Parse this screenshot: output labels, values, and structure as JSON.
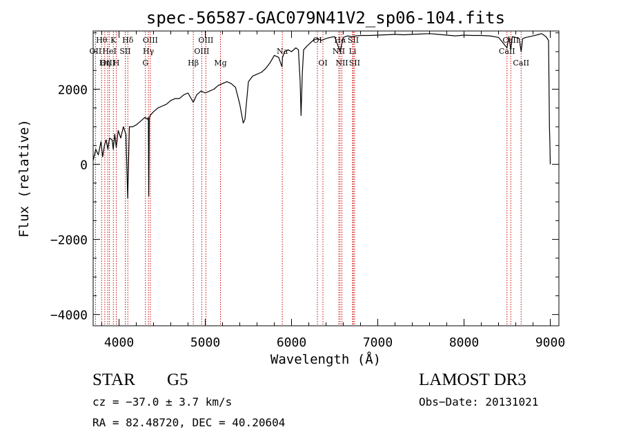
{
  "chart_data": {
    "type": "line",
    "title": "spec-56587-GAC079N41V2_sp06-104.fits",
    "xlabel": "Wavelength (Å)",
    "ylabel": "Flux (relative)",
    "xlim": [
      3700,
      9100
    ],
    "ylim": [
      -4300,
      3550
    ],
    "xticks": [
      4000,
      5000,
      6000,
      7000,
      8000,
      9000
    ],
    "xtick_labels": [
      "4000",
      "5000",
      "6000",
      "7000",
      "8000",
      "9000"
    ],
    "yticks": [
      -4000,
      -2000,
      0,
      2000
    ],
    "ytick_labels": [
      "−4000",
      "−2000",
      "0",
      "2000"
    ],
    "grid": false,
    "line_color": "#000000",
    "marker_color": "#cc0000",
    "series": [
      {
        "name": "spectrum",
        "x": [
          3700,
          3730,
          3760,
          3790,
          3810,
          3830,
          3850,
          3870,
          3890,
          3920,
          3933,
          3950,
          3968,
          3990,
          4020,
          4050,
          4080,
          4101,
          4120,
          4160,
          4200,
          4250,
          4300,
          4330,
          4340,
          4345,
          4350,
          4360,
          4400,
          4450,
          4500,
          4550,
          4600,
          4650,
          4700,
          4750,
          4800,
          4861,
          4900,
          4950,
          5000,
          5050,
          5100,
          5150,
          5200,
          5250,
          5300,
          5350,
          5400,
          5440,
          5460,
          5480,
          5500,
          5550,
          5600,
          5650,
          5700,
          5750,
          5800,
          5850,
          5889,
          5896,
          5920,
          5960,
          6000,
          6050,
          6080,
          6100,
          6110,
          6125,
          6140,
          6180,
          6250,
          6300,
          6350,
          6400,
          6450,
          6500,
          6563,
          6600,
          6650,
          6700,
          6750,
          6800,
          6900,
          7000,
          7100,
          7200,
          7300,
          7400,
          7500,
          7600,
          7700,
          7800,
          7900,
          8000,
          8100,
          8200,
          8300,
          8400,
          8498,
          8520,
          8542,
          8560,
          8600,
          8640,
          8662,
          8680,
          8720,
          8760,
          8800,
          8850,
          8900,
          8950,
          8980,
          8990,
          8995,
          9000
        ],
        "y": [
          100,
          400,
          250,
          600,
          200,
          500,
          650,
          400,
          700,
          650,
          400,
          800,
          450,
          900,
          700,
          1000,
          800,
          -900,
          1000,
          1000,
          1050,
          1150,
          1250,
          1200,
          1250,
          -850,
          1200,
          1300,
          1400,
          1500,
          1550,
          1600,
          1700,
          1750,
          1750,
          1850,
          1900,
          1650,
          1850,
          1950,
          1900,
          1950,
          2000,
          2100,
          2150,
          2200,
          2150,
          2050,
          1600,
          1100,
          1200,
          1700,
          2200,
          2350,
          2400,
          2450,
          2550,
          2700,
          2900,
          2850,
          2600,
          2850,
          3000,
          3050,
          3000,
          3100,
          3050,
          2200,
          1300,
          2400,
          3050,
          3150,
          3300,
          3350,
          3300,
          3350,
          3380,
          3400,
          3000,
          3380,
          3420,
          3400,
          3420,
          3430,
          3430,
          3440,
          3450,
          3460,
          3450,
          3460,
          3470,
          3480,
          3460,
          3440,
          3420,
          3440,
          3430,
          3430,
          3420,
          3380,
          3100,
          3400,
          3050,
          3400,
          3380,
          3350,
          3000,
          3350,
          3380,
          3400,
          3420,
          3450,
          3480,
          3400,
          3300,
          1000,
          600,
          0
        ]
      }
    ],
    "line_markers": [
      {
        "name": "Hθ",
        "wavelength": 3798,
        "row": 1
      },
      {
        "name": "OII",
        "wavelength": 3727,
        "row": 2
      },
      {
        "name": "OIII",
        "wavelength": 3869,
        "row": 3
      },
      {
        "name": "K",
        "wavelength": 3934,
        "row": 1
      },
      {
        "name": "HeI",
        "wavelength": 3889,
        "row": 2
      },
      {
        "name": "Hη",
        "wavelength": 3835,
        "row": 3
      },
      {
        "name": "Hδ",
        "wavelength": 4102,
        "row": 1
      },
      {
        "name": "SII",
        "wavelength": 4072,
        "row": 2
      },
      {
        "name": "H",
        "wavelength": 3968,
        "row": 3
      },
      {
        "name": "OIII",
        "wavelength": 4363,
        "row": 1
      },
      {
        "name": "Hγ",
        "wavelength": 4341,
        "row": 2
      },
      {
        "name": "G",
        "wavelength": 4306,
        "row": 3
      },
      {
        "name": "Hβ",
        "wavelength": 4861,
        "row": 3
      },
      {
        "name": "OIII",
        "wavelength": 5007,
        "row": 1
      },
      {
        "name": "OIII",
        "wavelength": 4959,
        "row": 2
      },
      {
        "name": "Mg",
        "wavelength": 5176,
        "row": 3
      },
      {
        "name": "Na",
        "wavelength": 5893,
        "row": 2
      },
      {
        "name": "OI",
        "wavelength": 6300,
        "row": 1
      },
      {
        "name": "OI",
        "wavelength": 6364,
        "row": 3
      },
      {
        "name": "Hα",
        "wavelength": 6563,
        "row": 1
      },
      {
        "name": "NII",
        "wavelength": 6548,
        "row": 2
      },
      {
        "name": "NII",
        "wavelength": 6584,
        "row": 3
      },
      {
        "name": "SII",
        "wavelength": 6716,
        "row": 1
      },
      {
        "name": "Li",
        "wavelength": 6708,
        "row": 2
      },
      {
        "name": "SII",
        "wavelength": 6731,
        "row": 3
      },
      {
        "name": "CaII",
        "wavelength": 8542,
        "row": 1
      },
      {
        "name": "CaII",
        "wavelength": 8498,
        "row": 2
      },
      {
        "name": "CaII",
        "wavelength": 8662,
        "row": 3
      }
    ]
  },
  "info": {
    "class": "STAR",
    "subclass": "G5",
    "survey": "LAMOST DR3",
    "cz": "cz = −37.0 ± 3.7 km/s",
    "obs_date": "Obs−Date: 20131021",
    "radec": "RA =  82.48720, DEC =  40.20604"
  }
}
